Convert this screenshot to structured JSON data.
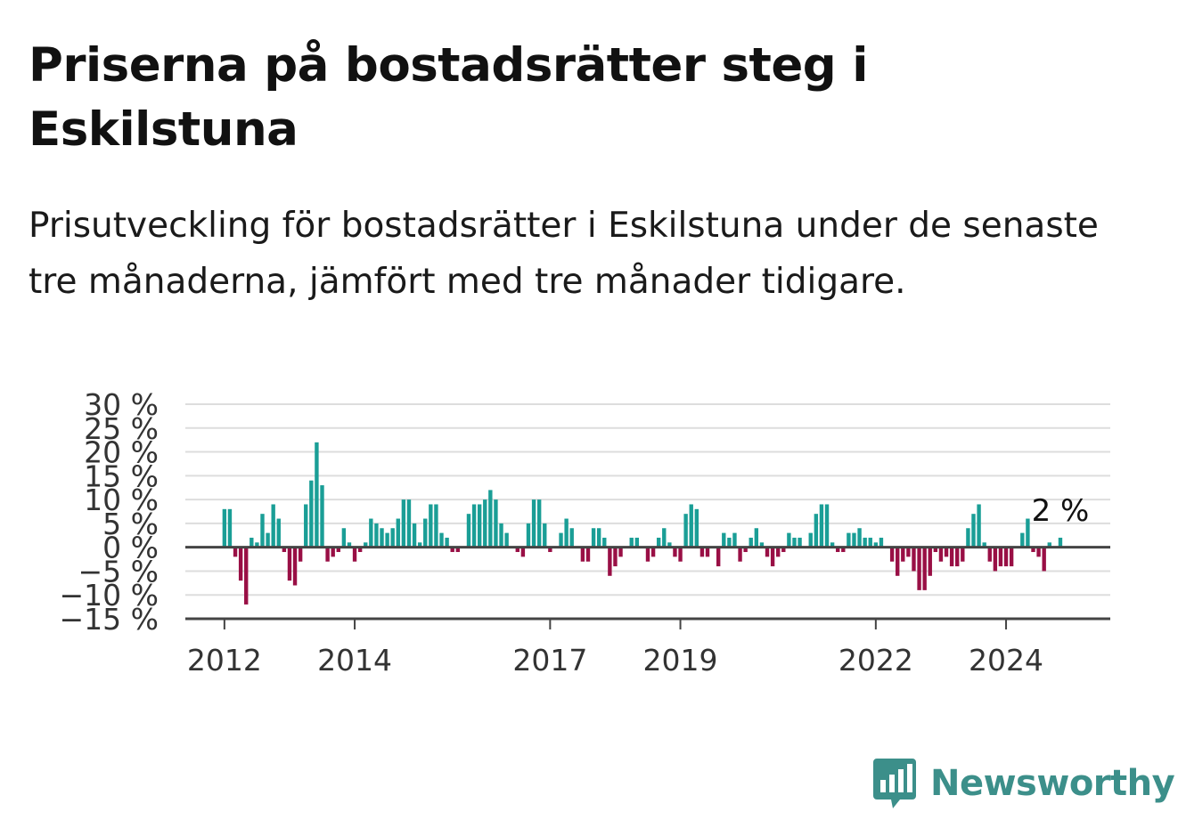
{
  "title": "Priserna på bostadsrätter steg i Eskilstuna",
  "subtitle": "Prisutveckling för bostadsrätter i Eskilstuna under de senaste tre månaderna, jämfört med tre månader tidigare.",
  "brand": {
    "name": "Newsworthy",
    "color": "#3c8f8a"
  },
  "chart_data": {
    "type": "bar",
    "y_ticks": [
      "30 %",
      "25 %",
      "20 %",
      "15 %",
      "10 %",
      "5 %",
      "0 %",
      "−5 %",
      "−10 %",
      "−15 %"
    ],
    "x_ticks": [
      "2012",
      "2014",
      "2017",
      "2019",
      "2022",
      "2024"
    ],
    "annotation": "2 %",
    "ylim": [
      -15,
      30
    ],
    "xlim": [
      2011.4,
      2025.6
    ],
    "grid": true,
    "colors": {
      "positive": "#1a9e96",
      "negative": "#990f45"
    },
    "series": [
      {
        "start": "2012-01",
        "values": [
          8,
          8,
          -2,
          -7,
          -12,
          2,
          1,
          7,
          3,
          9,
          6,
          -1,
          -7,
          -8,
          -3,
          9,
          14,
          22,
          13,
          -3,
          -2,
          -1,
          4,
          1,
          -3,
          -1,
          1,
          6,
          5,
          4,
          3,
          4,
          6,
          10,
          10,
          5,
          1,
          6,
          9,
          9,
          3,
          2,
          -1,
          -1,
          0,
          7,
          9,
          9,
          10,
          12,
          10,
          5,
          3,
          0,
          -1,
          -2,
          5,
          10,
          10,
          5,
          -1,
          0,
          3,
          6,
          4,
          0,
          -3,
          -3,
          4,
          4,
          2,
          -6,
          -4,
          -2,
          0,
          2,
          2,
          0,
          -3,
          -2,
          2,
          4,
          1,
          -2,
          -3,
          7,
          9,
          8,
          -2,
          -2,
          0,
          -4,
          3,
          2,
          3,
          -3,
          -1,
          2,
          4,
          1,
          -2,
          -4,
          -2,
          -1,
          3,
          2,
          2,
          0,
          3,
          7,
          9,
          9,
          1,
          -1,
          -1,
          3,
          3,
          4,
          2,
          2,
          1,
          2,
          0,
          -3,
          -6,
          -3,
          -2,
          -5,
          -9,
          -9,
          -6,
          -1,
          -3,
          -2,
          -4,
          -4,
          -3,
          4,
          7,
          9,
          1,
          -3,
          -5,
          -4,
          -4,
          -4,
          0,
          3,
          6,
          -1,
          -2,
          -5,
          1,
          0,
          2
        ]
      }
    ]
  }
}
